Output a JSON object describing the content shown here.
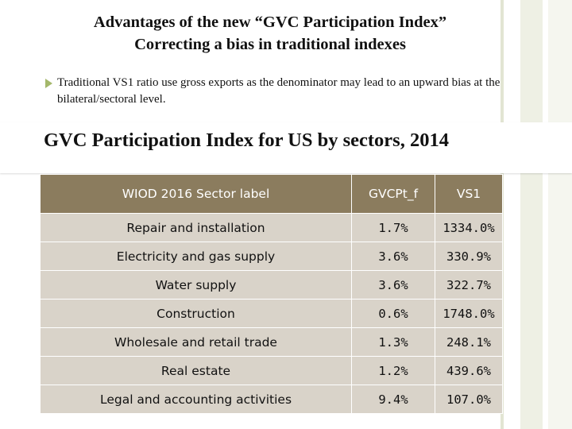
{
  "title": {
    "line1": "Advantages of the new “GVC Participation Index”",
    "line2": "Correcting a bias in traditional indexes"
  },
  "bullet": {
    "icon": "triangle-bullet-icon",
    "text": "Traditional VS1 ratio use gross exports as the denominator may lead to an upward bias at the bilateral/sectoral level."
  },
  "band_title": "GVC Participation Index for US by sectors, 2014",
  "table": {
    "headers": [
      "WIOD 2016 Sector label",
      "GVCPt_f",
      "VS1"
    ],
    "rows": [
      {
        "sector": "Repair and installation",
        "gvcpt_f": "1.7%",
        "vs1": "1334.0%"
      },
      {
        "sector": "Electricity and gas supply",
        "gvcpt_f": "3.6%",
        "vs1": "330.9%"
      },
      {
        "sector": "Water supply",
        "gvcpt_f": "3.6%",
        "vs1": "322.7%"
      },
      {
        "sector": "Construction",
        "gvcpt_f": "0.6%",
        "vs1": "1748.0%"
      },
      {
        "sector": "Wholesale and retail trade",
        "gvcpt_f": "1.3%",
        "vs1": "248.1%"
      },
      {
        "sector": "Real estate",
        "gvcpt_f": "1.2%",
        "vs1": "439.6%"
      },
      {
        "sector": "Legal and accounting activities",
        "gvcpt_f": "9.4%",
        "vs1": "107.0%"
      }
    ]
  },
  "colors": {
    "header_bg": "#8b7c5e",
    "row_bg": "#d9d3c9",
    "bullet": "#a4b86b"
  }
}
